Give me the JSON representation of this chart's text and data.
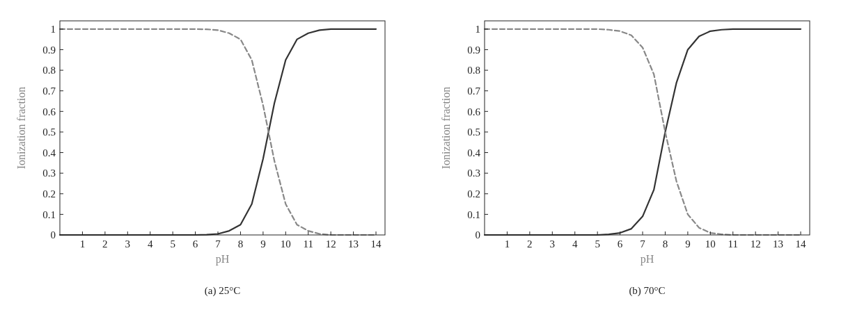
{
  "chart_data": [
    {
      "type": "line",
      "title": "(a)  25°C",
      "xlabel": "pH",
      "ylabel": "Ionization fraction",
      "xlim": [
        0,
        14.4
      ],
      "ylim": [
        0,
        1.04
      ],
      "xticks": [
        1,
        2,
        3,
        4,
        5,
        6,
        7,
        8,
        9,
        10,
        11,
        12,
        13,
        14
      ],
      "yticks": [
        0,
        0.1,
        0.2,
        0.3,
        0.4,
        0.5,
        0.6,
        0.7,
        0.8,
        0.9,
        1
      ],
      "marker": "none",
      "x": [
        0,
        0.5,
        1,
        1.5,
        2,
        2.5,
        3,
        3.5,
        4,
        4.5,
        5,
        5.5,
        6,
        6.5,
        7,
        7.5,
        8,
        8.5,
        9,
        9.5,
        10,
        10.5,
        11,
        11.5,
        12,
        12.5,
        13,
        13.5,
        14
      ],
      "series": [
        {
          "color": "#333333",
          "line_style": "solid",
          "values": [
            0,
            0,
            0,
            0,
            0,
            0,
            0,
            0,
            0,
            0,
            0,
            0,
            0,
            0.001,
            0.005,
            0.02,
            0.05,
            0.15,
            0.37,
            0.64,
            0.85,
            0.95,
            0.98,
            0.995,
            1,
            1,
            1,
            1,
            1
          ]
        },
        {
          "color": "#888888",
          "line_style": "dashed",
          "values": [
            1,
            1,
            1,
            1,
            1,
            1,
            1,
            1,
            1,
            1,
            1,
            1,
            1,
            0.999,
            0.995,
            0.98,
            0.95,
            0.85,
            0.63,
            0.36,
            0.15,
            0.05,
            0.02,
            0.005,
            0,
            0,
            0,
            0,
            0
          ]
        }
      ]
    },
    {
      "type": "line",
      "title": "(b)  70°C",
      "xlabel": "pH",
      "ylabel": "Ionization fraction",
      "xlim": [
        0,
        14.4
      ],
      "ylim": [
        0,
        1.04
      ],
      "xticks": [
        1,
        2,
        3,
        4,
        5,
        6,
        7,
        8,
        9,
        10,
        11,
        12,
        13,
        14
      ],
      "yticks": [
        0,
        0.1,
        0.2,
        0.3,
        0.4,
        0.5,
        0.6,
        0.7,
        0.8,
        0.9,
        1
      ],
      "marker": "none",
      "x": [
        0,
        0.5,
        1,
        1.5,
        2,
        2.5,
        3,
        3.5,
        4,
        4.5,
        5,
        5.5,
        6,
        6.5,
        7,
        7.5,
        8,
        8.5,
        9,
        9.5,
        10,
        10.5,
        11,
        11.5,
        12,
        12.5,
        13,
        13.5,
        14
      ],
      "series": [
        {
          "color": "#333333",
          "line_style": "solid",
          "values": [
            0,
            0,
            0,
            0,
            0,
            0,
            0,
            0,
            0,
            0,
            0,
            0.003,
            0.01,
            0.03,
            0.09,
            0.22,
            0.5,
            0.74,
            0.9,
            0.965,
            0.99,
            0.997,
            1,
            1,
            1,
            1,
            1,
            1,
            1
          ]
        },
        {
          "color": "#888888",
          "line_style": "dashed",
          "values": [
            1,
            1,
            1,
            1,
            1,
            1,
            1,
            1,
            1,
            1,
            1,
            0.997,
            0.99,
            0.97,
            0.91,
            0.78,
            0.5,
            0.26,
            0.1,
            0.035,
            0.01,
            0.003,
            0,
            0,
            0,
            0,
            0,
            0,
            0
          ]
        }
      ]
    }
  ]
}
